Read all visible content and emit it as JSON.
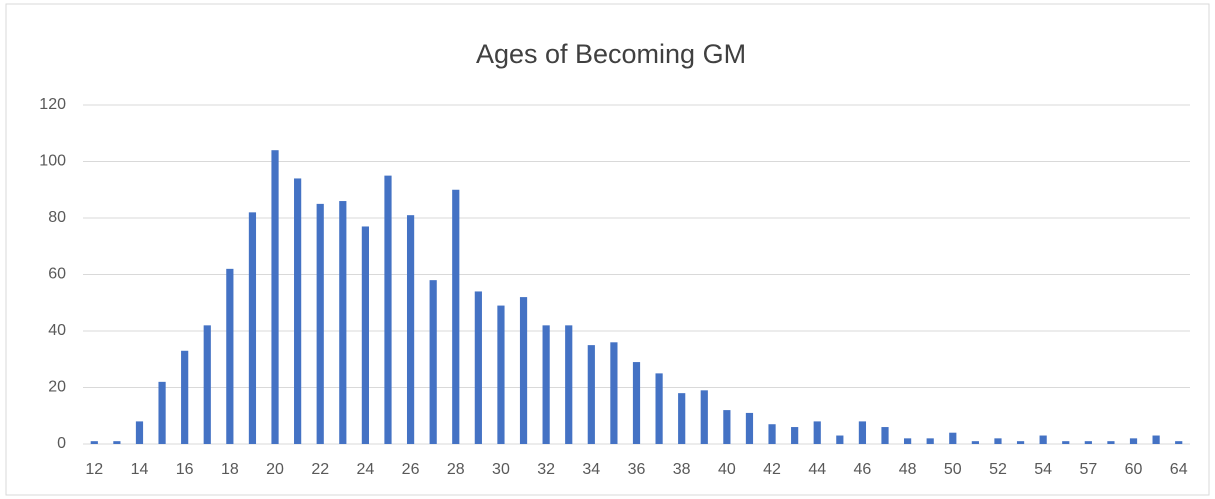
{
  "chart_data": {
    "type": "bar",
    "title": "Ages of Becoming GM",
    "categories": [
      "12",
      null,
      "14",
      null,
      "16",
      null,
      "18",
      null,
      "20",
      null,
      "22",
      null,
      "24",
      null,
      "26",
      null,
      "28",
      null,
      "30",
      null,
      "32",
      null,
      "34",
      null,
      "36",
      null,
      "38",
      null,
      "40",
      null,
      "42",
      null,
      "44",
      null,
      "46",
      null,
      "48",
      null,
      "50",
      null,
      "52",
      null,
      "54",
      null,
      "57",
      null,
      "60",
      null,
      "64"
    ],
    "values": [
      1,
      1,
      8,
      22,
      33,
      42,
      62,
      82,
      104,
      94,
      85,
      86,
      77,
      95,
      81,
      58,
      90,
      54,
      49,
      52,
      42,
      42,
      35,
      36,
      29,
      25,
      18,
      19,
      12,
      11,
      7,
      6,
      8,
      3,
      8,
      6,
      2,
      2,
      4,
      1,
      2,
      1,
      3,
      1,
      1,
      1,
      2,
      3,
      1
    ],
    "color": "#4472c4",
    "ylim": [
      0,
      120
    ],
    "yticks": [
      0,
      20,
      40,
      60,
      80,
      100,
      120
    ],
    "grid": true
  }
}
